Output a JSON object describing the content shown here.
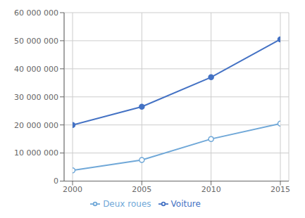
{
  "chart_data": {
    "type": "line",
    "x": [
      2000,
      2005,
      2010,
      2015
    ],
    "series": [
      {
        "name": "Voiture",
        "color": "#4472C4",
        "marker": "circle",
        "values": [
          20000000,
          26500000,
          37000000,
          50500000
        ]
      },
      {
        "name": "Deux roues",
        "color": "#70A8D8",
        "marker": "open_circle",
        "values": [
          3800000,
          7500000,
          15000000,
          20500000
        ]
      }
    ],
    "xlim": [
      2000,
      2015
    ],
    "xticks": [
      2000,
      2005,
      2010,
      2015
    ],
    "ylim": [
      0,
      60000000
    ],
    "yticks": [
      0,
      {
        "value": 10000000,
        "label": "10 000 000"
      },
      {
        "value": 20000000,
        "label": "20 000 000"
      },
      {
        "value": 30000000,
        "label": "30 000 000"
      },
      {
        "value": 40000000,
        "label": "40 000 000"
      },
      {
        "value": 50000000,
        "label": "50 000 000"
      },
      {
        "value": 60000000,
        "label": "60 000 000"
      }
    ],
    "grid": true,
    "legend": "bottom"
  }
}
